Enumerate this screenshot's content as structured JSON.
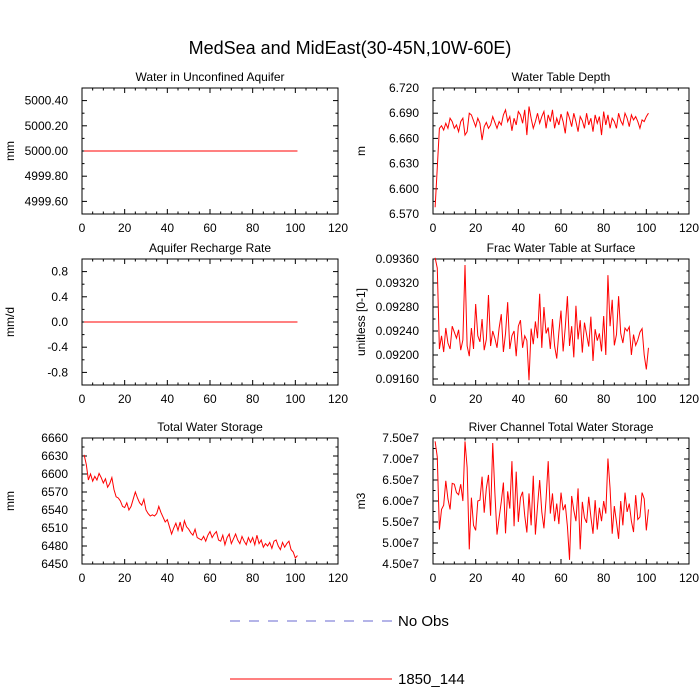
{
  "title": "MedSea and MidEast(30-45N,10W-60E)",
  "legend": [
    {
      "label": "No Obs",
      "color": "#6a6ad0",
      "style": "dashed"
    },
    {
      "label": "1850_144",
      "color": "#ff0000",
      "style": "solid"
    }
  ],
  "chart_data": [
    {
      "type": "line",
      "title": "Water in Unconfined Aquifer",
      "xlabel": "",
      "ylabel": "mm",
      "xlim": [
        0,
        120
      ],
      "ylim": [
        4999.5,
        5000.5
      ],
      "xticks": [
        0,
        20,
        40,
        60,
        80,
        100,
        120
      ],
      "xtick_labels": [
        "0",
        "20",
        "40",
        "60",
        "80",
        "100",
        "120"
      ],
      "yticks": [
        4999.6,
        4999.8,
        5000.0,
        5000.2,
        5000.4
      ],
      "ytick_labels": [
        "4999.60",
        "4999.80",
        "5000.00",
        "5000.20",
        "5000.40"
      ],
      "series": [
        {
          "name": "1850_144",
          "x0": 1,
          "dx": 1,
          "values": [
            5000,
            5000,
            5000,
            5000,
            5000,
            5000,
            5000,
            5000,
            5000,
            5000,
            5000,
            5000,
            5000,
            5000,
            5000,
            5000,
            5000,
            5000,
            5000,
            5000,
            5000,
            5000,
            5000,
            5000,
            5000,
            5000,
            5000,
            5000,
            5000,
            5000,
            5000,
            5000,
            5000,
            5000,
            5000,
            5000,
            5000,
            5000,
            5000,
            5000,
            5000,
            5000,
            5000,
            5000,
            5000,
            5000,
            5000,
            5000,
            5000,
            5000,
            5000,
            5000,
            5000,
            5000,
            5000,
            5000,
            5000,
            5000,
            5000,
            5000,
            5000,
            5000,
            5000,
            5000,
            5000,
            5000,
            5000,
            5000,
            5000,
            5000,
            5000,
            5000,
            5000,
            5000,
            5000,
            5000,
            5000,
            5000,
            5000,
            5000,
            5000,
            5000,
            5000,
            5000,
            5000,
            5000,
            5000,
            5000,
            5000,
            5000,
            5000,
            5000,
            5000,
            5000,
            5000,
            5000,
            5000,
            5000,
            5000,
            5000,
            5000
          ]
        }
      ]
    },
    {
      "type": "line",
      "title": "Water Table Depth",
      "xlabel": "",
      "ylabel": "m",
      "xlim": [
        0,
        120
      ],
      "ylim": [
        6.57,
        6.72
      ],
      "xticks": [
        0,
        20,
        40,
        60,
        80,
        100,
        120
      ],
      "xtick_labels": [
        "0",
        "20",
        "40",
        "60",
        "80",
        "100",
        "120"
      ],
      "yticks": [
        6.57,
        6.6,
        6.63,
        6.66,
        6.69,
        6.72
      ],
      "ytick_labels": [
        "6.570",
        "6.600",
        "6.630",
        "6.660",
        "6.690",
        "6.720"
      ],
      "series": [
        {
          "name": "1850_144",
          "x0": 1,
          "dx": 1,
          "values": [
            6.578,
            6.625,
            6.672,
            6.675,
            6.67,
            6.678,
            6.672,
            6.684,
            6.68,
            6.672,
            6.676,
            6.668,
            6.68,
            6.684,
            6.664,
            6.668,
            6.69,
            6.688,
            6.681,
            6.674,
            6.684,
            6.678,
            6.658,
            6.674,
            6.679,
            6.672,
            6.676,
            6.686,
            6.679,
            6.672,
            6.68,
            6.676,
            6.688,
            6.694,
            6.68,
            6.686,
            6.669,
            6.684,
            6.676,
            6.692,
            6.688,
            6.678,
            6.694,
            6.664,
            6.698,
            6.684,
            6.672,
            6.68,
            6.69,
            6.678,
            6.686,
            6.692,
            6.672,
            6.688,
            6.68,
            6.694,
            6.672,
            6.684,
            6.676,
            6.689,
            6.68,
            6.666,
            6.692,
            6.684,
            6.674,
            6.69,
            6.68,
            6.668,
            6.686,
            6.681,
            6.672,
            6.69,
            6.676,
            6.684,
            6.668,
            6.688,
            6.678,
            6.686,
            6.664,
            6.692,
            6.676,
            6.688,
            6.672,
            6.684,
            6.68,
            6.672,
            6.69,
            6.681,
            6.676,
            6.69,
            6.684,
            6.674,
            6.688,
            6.682,
            6.686,
            6.68,
            6.672,
            6.682,
            6.68,
            6.686,
            6.69
          ]
        }
      ]
    },
    {
      "type": "line",
      "title": "Aquifer Recharge Rate",
      "xlabel": "",
      "ylabel": "mm/d",
      "xlim": [
        0,
        120
      ],
      "ylim": [
        -1.0,
        1.0
      ],
      "xticks": [
        0,
        20,
        40,
        60,
        80,
        100,
        120
      ],
      "xtick_labels": [
        "0",
        "20",
        "40",
        "60",
        "80",
        "100",
        "120"
      ],
      "yticks": [
        -0.8,
        -0.4,
        0.0,
        0.4,
        0.8
      ],
      "ytick_labels": [
        "-0.8",
        "-0.4",
        "0.0",
        "0.4",
        "0.8"
      ],
      "series": [
        {
          "name": "1850_144",
          "x0": 1,
          "dx": 1,
          "values": [
            0,
            0,
            0,
            0,
            0,
            0,
            0,
            0,
            0,
            0,
            0,
            0,
            0,
            0,
            0,
            0,
            0,
            0,
            0,
            0,
            0,
            0,
            0,
            0,
            0,
            0,
            0,
            0,
            0,
            0,
            0,
            0,
            0,
            0,
            0,
            0,
            0,
            0,
            0,
            0,
            0,
            0,
            0,
            0,
            0,
            0,
            0,
            0,
            0,
            0,
            0,
            0,
            0,
            0,
            0,
            0,
            0,
            0,
            0,
            0,
            0,
            0,
            0,
            0,
            0,
            0,
            0,
            0,
            0,
            0,
            0,
            0,
            0,
            0,
            0,
            0,
            0,
            0,
            0,
            0,
            0,
            0,
            0,
            0,
            0,
            0,
            0,
            0,
            0,
            0,
            0,
            0,
            0,
            0,
            0,
            0,
            0,
            0,
            0,
            0,
            0
          ]
        }
      ]
    },
    {
      "type": "line",
      "title": "Frac Water Table at Surface",
      "xlabel": "",
      "ylabel": "unitless [0-1]",
      "xlim": [
        0,
        120
      ],
      "ylim": [
        0.0915,
        0.0936
      ],
      "xticks": [
        0,
        20,
        40,
        60,
        80,
        100,
        120
      ],
      "xtick_labels": [
        "0",
        "20",
        "40",
        "60",
        "80",
        "100",
        "120"
      ],
      "yticks": [
        0.0916,
        0.092,
        0.0924,
        0.0928,
        0.0932,
        0.0936
      ],
      "ytick_labels": [
        "0.09160",
        "0.09200",
        "0.09240",
        "0.09280",
        "0.09320",
        "0.09360"
      ],
      "series": [
        {
          "name": "1850_144",
          "x0": 1,
          "dx": 1,
          "values": [
            0.09362,
            0.09345,
            0.0921,
            0.09232,
            0.09205,
            0.09245,
            0.0922,
            0.0921,
            0.09248,
            0.09238,
            0.09228,
            0.09242,
            0.09208,
            0.09225,
            0.0935,
            0.09215,
            0.09198,
            0.09245,
            0.0921,
            0.09285,
            0.09232,
            0.09222,
            0.0926,
            0.09208,
            0.09226,
            0.093,
            0.09215,
            0.0924,
            0.09228,
            0.09212,
            0.09245,
            0.09268,
            0.09205,
            0.09236,
            0.09288,
            0.0921,
            0.09232,
            0.0924,
            0.09198,
            0.09248,
            0.09258,
            0.09212,
            0.09232,
            0.09224,
            0.09158,
            0.09244,
            0.09218,
            0.09256,
            0.09228,
            0.09302,
            0.09212,
            0.0928,
            0.09236,
            0.09246,
            0.0921,
            0.0926,
            0.09215,
            0.09194,
            0.09238,
            0.09274,
            0.09206,
            0.09246,
            0.09298,
            0.09215,
            0.09248,
            0.09196,
            0.09282,
            0.09226,
            0.09258,
            0.09204,
            0.09254,
            0.09234,
            0.09214,
            0.09264,
            0.0919,
            0.09243,
            0.09224,
            0.09236,
            0.09206,
            0.09265,
            0.092,
            0.09333,
            0.09248,
            0.09292,
            0.09216,
            0.09234,
            0.09298,
            0.09236,
            0.0922,
            0.09245,
            0.0924,
            0.09247,
            0.092,
            0.09234,
            0.09216,
            0.09225,
            0.09238,
            0.09244,
            0.092,
            0.09176,
            0.09212
          ]
        }
      ]
    },
    {
      "type": "line",
      "title": "Total Water Storage",
      "xlabel": "",
      "ylabel": "mm",
      "xlim": [
        0,
        120
      ],
      "ylim": [
        6450,
        6660
      ],
      "xticks": [
        0,
        20,
        40,
        60,
        80,
        100,
        120
      ],
      "xtick_labels": [
        "0",
        "20",
        "40",
        "60",
        "80",
        "100",
        "120"
      ],
      "yticks": [
        6450,
        6480,
        6510,
        6540,
        6570,
        6600,
        6630,
        6660
      ],
      "ytick_labels": [
        "6450",
        "6480",
        "6510",
        "6540",
        "6570",
        "6600",
        "6630",
        "6660"
      ],
      "series": [
        {
          "name": "1850_144",
          "x0": 1,
          "dx": 1,
          "values": [
            6632,
            6616,
            6590,
            6600,
            6588,
            6596,
            6590,
            6601,
            6594,
            6585,
            6592,
            6578,
            6584,
            6594,
            6574,
            6562,
            6560,
            6555,
            6546,
            6544,
            6552,
            6540,
            6546,
            6558,
            6570,
            6560,
            6552,
            6548,
            6558,
            6540,
            6534,
            6530,
            6532,
            6530,
            6534,
            6546,
            6536,
            6528,
            6520,
            6524,
            6512,
            6500,
            6510,
            6518,
            6506,
            6520,
            6504,
            6522,
            6512,
            6508,
            6502,
            6498,
            6508,
            6494,
            6492,
            6490,
            6496,
            6488,
            6498,
            6504,
            6494,
            6500,
            6504,
            6490,
            6488,
            6498,
            6482,
            6494,
            6500,
            6484,
            6492,
            6500,
            6490,
            6484,
            6496,
            6488,
            6482,
            6494,
            6486,
            6494,
            6482,
            6498,
            6484,
            6490,
            6478,
            6484,
            6480,
            6486,
            6476,
            6488,
            6490,
            6480,
            6474,
            6486,
            6478,
            6484,
            6488,
            6474,
            6470,
            6460,
            6464
          ]
        }
      ]
    },
    {
      "type": "line",
      "title": "River Channel Total Water Storage",
      "xlabel": "",
      "ylabel": "m3",
      "xlim": [
        0,
        120
      ],
      "ylim": [
        45000000,
        75000000
      ],
      "xticks": [
        0,
        20,
        40,
        60,
        80,
        100,
        120
      ],
      "xtick_labels": [
        "0",
        "20",
        "40",
        "60",
        "80",
        "100",
        "120"
      ],
      "yticks": [
        45000000,
        50000000,
        55000000,
        60000000,
        65000000,
        70000000,
        75000000
      ],
      "ytick_labels": [
        "4.50e7",
        "5.00e7",
        "5.50e7",
        "6.00e7",
        "6.50e7",
        "7.00e7",
        "7.50e7"
      ],
      "series": [
        {
          "name": "1850_144",
          "x0": 1,
          "dx": 1,
          "values": [
            74200000,
            70500000,
            53200000,
            58000000,
            59000000,
            64800000,
            60500000,
            58000000,
            64200000,
            64000000,
            62000000,
            61500000,
            64000000,
            60000000,
            74200000,
            68000000,
            48500000,
            60800000,
            54200000,
            53000000,
            60000000,
            60200000,
            65800000,
            57200000,
            63000000,
            66200000,
            56500000,
            73800000,
            62000000,
            52000000,
            56000000,
            59800000,
            64400000,
            52300000,
            62300000,
            58200000,
            69500000,
            54000000,
            67000000,
            55000000,
            60800000,
            62200000,
            56500000,
            52500000,
            61800000,
            54200000,
            66000000,
            52000000,
            58800000,
            65000000,
            57400000,
            53500000,
            60400000,
            69500000,
            57000000,
            61800000,
            55200000,
            59400000,
            54500000,
            62000000,
            57800000,
            59200000,
            54000000,
            46000000,
            61200000,
            57800000,
            55200000,
            63000000,
            48500000,
            59800000,
            56000000,
            54800000,
            61000000,
            56200000,
            52200000,
            60200000,
            53200000,
            58400000,
            55200000,
            60000000,
            57000000,
            70100000,
            63000000,
            52200000,
            58800000,
            55000000,
            51000000,
            60000000,
            54200000,
            62000000,
            57400000,
            59400000,
            55200000,
            52600000,
            61400000,
            55600000,
            56200000,
            62000000,
            60500000,
            53000000,
            58000000
          ]
        }
      ]
    }
  ]
}
